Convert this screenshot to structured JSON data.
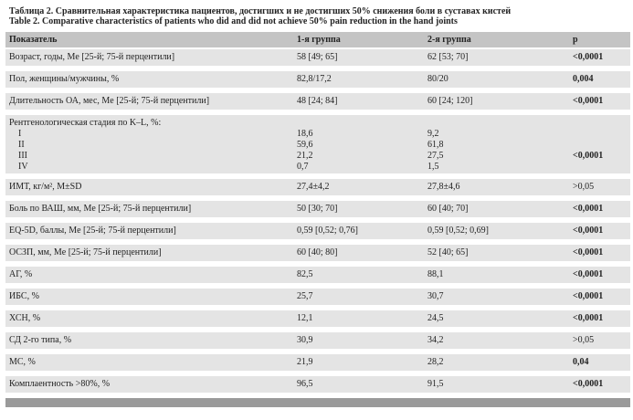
{
  "header": {
    "title_ru": "Таблица 2. Сравнительная характеристика пациентов, достигших и не достигших 50% снижения боли в суставах кистей",
    "title_en": "Table 2. Comparative characteristics of patients who did and did not achieve 50% pain reduction in the hand joints"
  },
  "table": {
    "columns": [
      "Показатель",
      "1-я группа",
      "2-я группа",
      "p"
    ],
    "rows": [
      {
        "cells": [
          "Возраст, годы, Me [25-й; 75-й перцентили]",
          "58 [49; 65]",
          "62 [53; 70]",
          "<0,0001"
        ],
        "p_bold": true
      },
      {
        "cells": [
          "Пол, женщины/мужчины, %",
          "82,8/17,2",
          "80/20",
          "0,004"
        ],
        "p_bold": true
      },
      {
        "cells": [
          "Длительность ОА, мес, Me [25-й; 75-й перцентили]",
          "48 [24; 84]",
          "60 [24; 120]",
          "<0,0001"
        ],
        "p_bold": true
      },
      {
        "cells": [
          "Рентгенологическая стадия по K–L, %:",
          "",
          "",
          ""
        ],
        "p_bold": true,
        "sub": [
          [
            "I",
            "18,6",
            "9,2",
            ""
          ],
          [
            "II",
            "59,6",
            "61,8",
            ""
          ],
          [
            "III",
            "21,2",
            "27,5",
            "<0,0001"
          ],
          [
            "IV",
            "0,7",
            "1,5",
            ""
          ]
        ]
      },
      {
        "cells": [
          "ИМТ, кг/м², M±SD",
          "27,4±4,2",
          "27,8±4,6",
          ">0,05"
        ],
        "p_bold": false
      },
      {
        "cells": [
          "Боль по ВАШ, мм, Me [25-й; 75-й перцентили]",
          "50 [30; 70]",
          "60 [40; 70]",
          "<0,0001"
        ],
        "p_bold": true
      },
      {
        "cells": [
          "EQ-5D, баллы, Me [25-й; 75-й перцентили]",
          "0,59 [0,52; 0,76]",
          "0,59 [0,52; 0,69]",
          "<0,0001"
        ],
        "p_bold": true
      },
      {
        "cells": [
          "ОСЗП, мм, Me [25-й; 75-й перцентили]",
          "60 [40; 80]",
          "52 [40; 65]",
          "<0,0001"
        ],
        "p_bold": true
      },
      {
        "cells": [
          "АГ, %",
          "82,5",
          "88,1",
          "<0,0001"
        ],
        "p_bold": true
      },
      {
        "cells": [
          "ИБС, %",
          "25,7",
          "30,7",
          "<0,0001"
        ],
        "p_bold": true
      },
      {
        "cells": [
          "ХСН, %",
          "12,1",
          "24,5",
          "<0,0001"
        ],
        "p_bold": true
      },
      {
        "cells": [
          "СД 2-го типа, %",
          "30,9",
          "34,2",
          ">0,05"
        ],
        "p_bold": false
      },
      {
        "cells": [
          "МС, %",
          "21,9",
          "28,2",
          "0,04"
        ],
        "p_bold": true
      },
      {
        "cells": [
          "Комплаентность >80%, %",
          "96,5",
          "91,5",
          "<0,0001"
        ],
        "p_bold": true
      }
    ]
  }
}
